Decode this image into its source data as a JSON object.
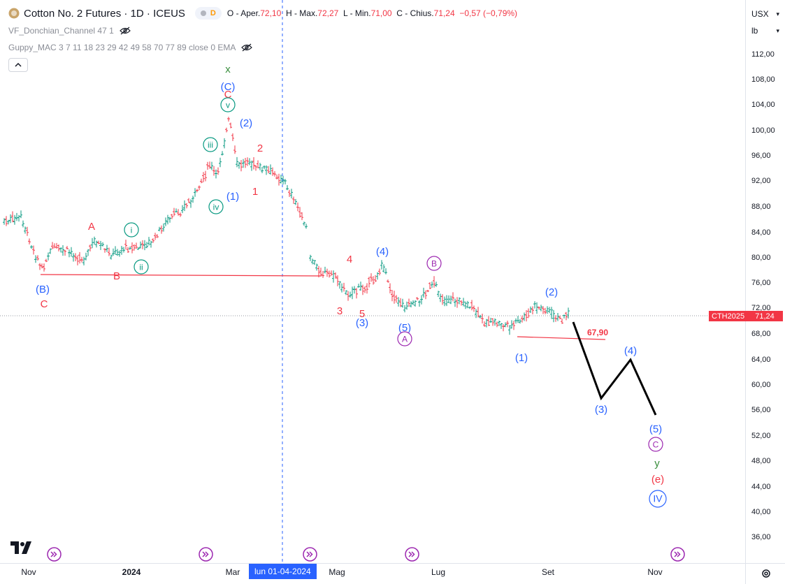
{
  "header": {
    "title": "Cotton No. 2 Futures · 1D · ICEUS",
    "badge_letter": "D",
    "ohlc": {
      "open_label": "O",
      "open_text": "- Aper.",
      "open": "72,10",
      "high_label": "H - Max.",
      "high": "72,27",
      "low_label": "L - Min.",
      "low": "71,00",
      "close_label": "C - Chius.",
      "close": "71,24",
      "change": "−0,57 (−0,79%)"
    }
  },
  "indicators": [
    {
      "label": "VF_Donchian_Channel 47 1"
    },
    {
      "label": "Guppy_MAC 3 7 11 18 23 29 42 49 58 70 77 89 close 0 EMA"
    }
  ],
  "scale": {
    "currency": "USX",
    "unit": "lb"
  },
  "price_ticks": [
    "112,00",
    "108,00",
    "104,00",
    "100,00",
    "96,00",
    "92,00",
    "88,00",
    "84,00",
    "80,00",
    "76,00",
    "72,00",
    "68,00",
    "64,00",
    "60,00",
    "56,00",
    "52,00",
    "48,00",
    "44,00",
    "40,00",
    "36,00"
  ],
  "last_price": {
    "symbol": "CTH2025",
    "value": "71,24"
  },
  "time_ticks": [
    {
      "label": "Nov",
      "year": false
    },
    {
      "label": "2024",
      "year": true
    },
    {
      "label": "Mar",
      "year": false
    },
    {
      "label": "Mag",
      "year": false
    },
    {
      "label": "Lug",
      "year": false
    },
    {
      "label": "Set",
      "year": false
    },
    {
      "label": "Nov",
      "year": false
    }
  ],
  "crosshair_date": "lun 01-04-2024",
  "level_label": "67,90",
  "wave_labels": {
    "x": "x",
    "C_blue": "(C)",
    "C_red": "C",
    "v": "v",
    "two_blue_top": "(2)",
    "two_red_top": "2",
    "iii": "iii",
    "iv": "iv",
    "one_blue_top": "(1)",
    "one_red_top": "1",
    "A_red": "A",
    "i": "i",
    "ii": "ii",
    "B_blue": "(B)",
    "B_red": "B",
    "C_red_bottom": "C",
    "four_red": "4",
    "three_red": "3",
    "five_red": "5",
    "three_blue": "(3)",
    "four_blue": "(4)",
    "five_blue": "(5)",
    "A_purple": "A",
    "B_purple": "B",
    "two_blue_right": "(2)",
    "one_blue_right": "(1)",
    "three_blue_proj": "(3)",
    "four_blue_proj": "(4)",
    "five_blue_proj": "(5)",
    "C_purple_proj": "C",
    "y": "y",
    "e": "(e)",
    "IV": "IV"
  },
  "colors": {
    "up": "#089981",
    "down": "#f23645",
    "blue": "#2962ff",
    "red": "#f23645",
    "teal": "#089981",
    "green": "#388e3c",
    "purple": "#9c27b0"
  }
}
